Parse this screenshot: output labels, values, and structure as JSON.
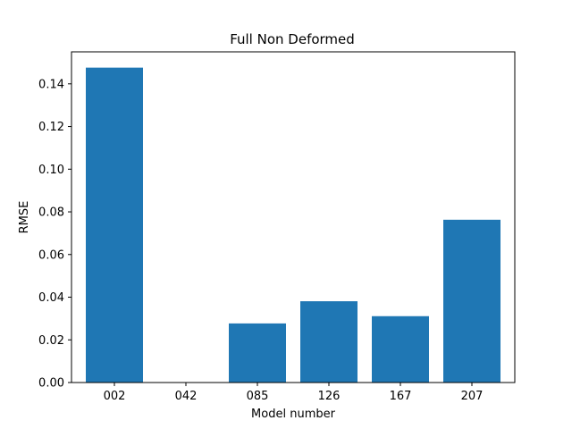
{
  "chart_data": {
    "type": "bar",
    "title": "Full Non Deformed",
    "xlabel": "Model number",
    "ylabel": "RMSE",
    "categories": [
      "002",
      "042",
      "085",
      "126",
      "167",
      "207"
    ],
    "values": [
      0.1476,
      0.0,
      0.0277,
      0.0381,
      0.0311,
      0.0763
    ],
    "yticks": [
      "0.00",
      "0.02",
      "0.04",
      "0.06",
      "0.08",
      "0.10",
      "0.12",
      "0.14"
    ],
    "ylim": [
      0,
      0.155
    ],
    "grid": false,
    "legend": "none",
    "bar_color": "#1f77b4"
  }
}
